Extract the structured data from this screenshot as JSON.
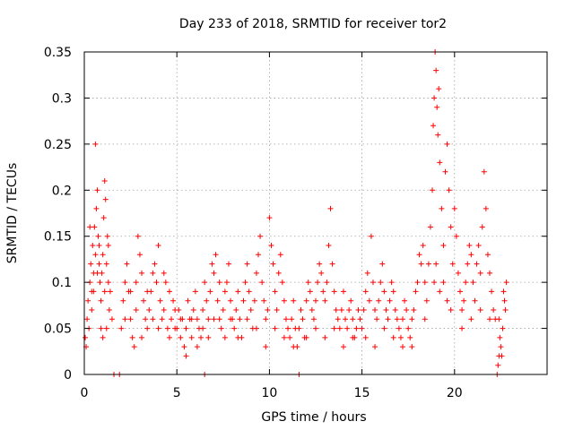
{
  "chart_data": {
    "type": "scatter",
    "title": "Day 233 of 2018, SRMTID for receiver tor2",
    "xlabel": "GPS time / hours",
    "ylabel": "SRMTID / TECUs",
    "xlim": [
      0,
      25
    ],
    "ylim": [
      0,
      0.35
    ],
    "x_ticks": [
      0,
      5,
      10,
      15,
      20
    ],
    "x_tick_labels": [
      "0",
      "5",
      "10",
      "15",
      "20"
    ],
    "y_ticks": [
      0,
      0.05,
      0.1,
      0.15,
      0.2,
      0.25,
      0.3,
      0.35
    ],
    "y_tick_labels": [
      "0",
      "0.05",
      "0.1",
      "0.15",
      "0.2",
      "0.25",
      "0.3",
      "0.35"
    ],
    "grid": true,
    "marker": "plus",
    "series": [
      {
        "name": "SRMTID",
        "color": "#ff0000",
        "points": [
          [
            0.05,
            0.04
          ],
          [
            0.1,
            0.03
          ],
          [
            0.15,
            0.06
          ],
          [
            0.2,
            0.08
          ],
          [
            0.25,
            0.05
          ],
          [
            0.3,
            0.1
          ],
          [
            0.35,
            0.12
          ],
          [
            0.4,
            0.09
          ],
          [
            0.45,
            0.14
          ],
          [
            0.5,
            0.11
          ],
          [
            0.55,
            0.16
          ],
          [
            0.6,
            0.13
          ],
          [
            0.65,
            0.18
          ],
          [
            0.7,
            0.2
          ],
          [
            0.75,
            0.15
          ],
          [
            0.8,
            0.12
          ],
          [
            0.85,
            0.1
          ],
          [
            0.9,
            0.08
          ],
          [
            0.95,
            0.11
          ],
          [
            1.0,
            0.13
          ],
          [
            1.05,
            0.17
          ],
          [
            1.1,
            0.21
          ],
          [
            1.15,
            0.19
          ],
          [
            1.2,
            0.12
          ],
          [
            1.25,
            0.15
          ],
          [
            1.3,
            0.1
          ],
          [
            1.35,
            0.07
          ],
          [
            1.4,
            0.09
          ],
          [
            0.3,
            0.16
          ],
          [
            0.4,
            0.07
          ],
          [
            0.5,
            0.09
          ],
          [
            0.6,
            0.25
          ],
          [
            0.7,
            0.11
          ],
          [
            0.8,
            0.14
          ],
          [
            0.9,
            0.05
          ],
          [
            1.0,
            0.04
          ],
          [
            1.1,
            0.09
          ],
          [
            1.2,
            0.05
          ],
          [
            1.3,
            0.14
          ],
          [
            1.5,
            0.06
          ],
          [
            1.6,
            0.0
          ],
          [
            1.9,
            0.0
          ],
          [
            2.0,
            0.05
          ],
          [
            2.1,
            0.08
          ],
          [
            2.2,
            0.1
          ],
          [
            2.3,
            0.12
          ],
          [
            2.4,
            0.09
          ],
          [
            2.5,
            0.06
          ],
          [
            2.6,
            0.04
          ],
          [
            2.7,
            0.03
          ],
          [
            2.8,
            0.07
          ],
          [
            2.9,
            0.15
          ],
          [
            3.0,
            0.13
          ],
          [
            3.1,
            0.11
          ],
          [
            3.2,
            0.08
          ],
          [
            3.3,
            0.06
          ],
          [
            3.4,
            0.05
          ],
          [
            3.5,
            0.07
          ],
          [
            3.6,
            0.09
          ],
          [
            3.7,
            0.11
          ],
          [
            3.8,
            0.12
          ],
          [
            3.9,
            0.1
          ],
          [
            4.0,
            0.14
          ],
          [
            4.1,
            0.08
          ],
          [
            4.2,
            0.06
          ],
          [
            4.3,
            0.07
          ],
          [
            4.4,
            0.1
          ],
          [
            4.5,
            0.05
          ],
          [
            4.6,
            0.04
          ],
          [
            4.7,
            0.06
          ],
          [
            4.8,
            0.08
          ],
          [
            4.9,
            0.05
          ],
          [
            2.2,
            0.06
          ],
          [
            2.5,
            0.09
          ],
          [
            2.8,
            0.1
          ],
          [
            3.1,
            0.04
          ],
          [
            3.4,
            0.09
          ],
          [
            3.7,
            0.06
          ],
          [
            4.0,
            0.05
          ],
          [
            4.3,
            0.11
          ],
          [
            4.6,
            0.09
          ],
          [
            4.9,
            0.07
          ],
          [
            5.0,
            0.05
          ],
          [
            5.1,
            0.07
          ],
          [
            5.2,
            0.04
          ],
          [
            5.3,
            0.06
          ],
          [
            5.4,
            0.03
          ],
          [
            5.5,
            0.05
          ],
          [
            5.6,
            0.08
          ],
          [
            5.7,
            0.06
          ],
          [
            5.8,
            0.04
          ],
          [
            5.9,
            0.07
          ],
          [
            6.0,
            0.09
          ],
          [
            6.1,
            0.06
          ],
          [
            6.2,
            0.05
          ],
          [
            6.3,
            0.04
          ],
          [
            6.4,
            0.07
          ],
          [
            6.5,
            0.1
          ],
          [
            6.6,
            0.08
          ],
          [
            6.7,
            0.06
          ],
          [
            6.8,
            0.09
          ],
          [
            6.9,
            0.12
          ],
          [
            7.0,
            0.11
          ],
          [
            7.1,
            0.13
          ],
          [
            7.2,
            0.08
          ],
          [
            7.3,
            0.06
          ],
          [
            7.4,
            0.05
          ],
          [
            7.5,
            0.07
          ],
          [
            7.6,
            0.09
          ],
          [
            7.7,
            0.1
          ],
          [
            7.8,
            0.12
          ],
          [
            7.9,
            0.08
          ],
          [
            5.2,
            0.06
          ],
          [
            5.5,
            0.02
          ],
          [
            5.8,
            0.06
          ],
          [
            6.1,
            0.03
          ],
          [
            6.4,
            0.05
          ],
          [
            6.7,
            0.04
          ],
          [
            7.0,
            0.06
          ],
          [
            7.3,
            0.1
          ],
          [
            7.6,
            0.04
          ],
          [
            7.9,
            0.06
          ],
          [
            6.5,
            0.0
          ],
          [
            8.0,
            0.06
          ],
          [
            8.1,
            0.05
          ],
          [
            8.2,
            0.07
          ],
          [
            8.3,
            0.09
          ],
          [
            8.4,
            0.06
          ],
          [
            8.5,
            0.04
          ],
          [
            8.6,
            0.08
          ],
          [
            8.7,
            0.1
          ],
          [
            8.8,
            0.12
          ],
          [
            8.9,
            0.09
          ],
          [
            9.0,
            0.07
          ],
          [
            9.1,
            0.05
          ],
          [
            9.2,
            0.08
          ],
          [
            9.3,
            0.11
          ],
          [
            9.4,
            0.13
          ],
          [
            9.5,
            0.15
          ],
          [
            9.6,
            0.1
          ],
          [
            9.7,
            0.08
          ],
          [
            9.8,
            0.06
          ],
          [
            9.9,
            0.07
          ],
          [
            10.0,
            0.17
          ],
          [
            10.1,
            0.14
          ],
          [
            10.2,
            0.12
          ],
          [
            10.3,
            0.09
          ],
          [
            10.4,
            0.07
          ],
          [
            10.5,
            0.11
          ],
          [
            10.6,
            0.13
          ],
          [
            10.7,
            0.1
          ],
          [
            10.8,
            0.08
          ],
          [
            10.9,
            0.06
          ],
          [
            11.0,
            0.05
          ],
          [
            11.1,
            0.04
          ],
          [
            11.2,
            0.06
          ],
          [
            11.3,
            0.08
          ],
          [
            11.4,
            0.05
          ],
          [
            8.3,
            0.04
          ],
          [
            8.8,
            0.06
          ],
          [
            9.3,
            0.05
          ],
          [
            9.8,
            0.03
          ],
          [
            10.3,
            0.05
          ],
          [
            10.8,
            0.04
          ],
          [
            11.3,
            0.03
          ],
          [
            11.6,
            0.0
          ],
          [
            11.5,
            0.03
          ],
          [
            11.6,
            0.05
          ],
          [
            11.7,
            0.07
          ],
          [
            11.8,
            0.06
          ],
          [
            11.9,
            0.04
          ],
          [
            12.0,
            0.08
          ],
          [
            12.1,
            0.1
          ],
          [
            12.2,
            0.09
          ],
          [
            12.3,
            0.07
          ],
          [
            12.4,
            0.06
          ],
          [
            12.5,
            0.08
          ],
          [
            12.6,
            0.1
          ],
          [
            12.7,
            0.12
          ],
          [
            12.8,
            0.11
          ],
          [
            12.9,
            0.09
          ],
          [
            13.0,
            0.08
          ],
          [
            13.1,
            0.1
          ],
          [
            13.2,
            0.14
          ],
          [
            13.3,
            0.18
          ],
          [
            13.4,
            0.12
          ],
          [
            13.5,
            0.09
          ],
          [
            13.6,
            0.07
          ],
          [
            13.7,
            0.06
          ],
          [
            13.8,
            0.05
          ],
          [
            13.9,
            0.07
          ],
          [
            14.0,
            0.09
          ],
          [
            14.1,
            0.06
          ],
          [
            14.2,
            0.05
          ],
          [
            14.3,
            0.07
          ],
          [
            14.4,
            0.08
          ],
          [
            14.5,
            0.06
          ],
          [
            14.6,
            0.04
          ],
          [
            14.7,
            0.05
          ],
          [
            14.8,
            0.07
          ],
          [
            14.9,
            0.06
          ],
          [
            12.0,
            0.04
          ],
          [
            12.5,
            0.05
          ],
          [
            13.0,
            0.04
          ],
          [
            13.5,
            0.05
          ],
          [
            14.0,
            0.03
          ],
          [
            14.5,
            0.04
          ],
          [
            15.0,
            0.05
          ],
          [
            15.1,
            0.07
          ],
          [
            15.2,
            0.09
          ],
          [
            15.3,
            0.11
          ],
          [
            15.4,
            0.08
          ],
          [
            15.5,
            0.15
          ],
          [
            15.6,
            0.1
          ],
          [
            15.7,
            0.07
          ],
          [
            15.8,
            0.06
          ],
          [
            15.9,
            0.08
          ],
          [
            16.0,
            0.1
          ],
          [
            16.1,
            0.12
          ],
          [
            16.2,
            0.09
          ],
          [
            16.3,
            0.07
          ],
          [
            16.4,
            0.06
          ],
          [
            16.5,
            0.08
          ],
          [
            16.6,
            0.1
          ],
          [
            16.7,
            0.09
          ],
          [
            16.8,
            0.07
          ],
          [
            16.9,
            0.06
          ],
          [
            17.0,
            0.05
          ],
          [
            17.1,
            0.04
          ],
          [
            17.2,
            0.06
          ],
          [
            17.3,
            0.08
          ],
          [
            17.4,
            0.07
          ],
          [
            17.5,
            0.05
          ],
          [
            17.6,
            0.04
          ],
          [
            17.7,
            0.06
          ],
          [
            17.8,
            0.07
          ],
          [
            17.9,
            0.09
          ],
          [
            15.2,
            0.04
          ],
          [
            15.7,
            0.03
          ],
          [
            16.2,
            0.05
          ],
          [
            16.7,
            0.04
          ],
          [
            17.2,
            0.03
          ],
          [
            17.7,
            0.03
          ],
          [
            18.0,
            0.1
          ],
          [
            18.1,
            0.13
          ],
          [
            18.2,
            0.12
          ],
          [
            18.3,
            0.14
          ],
          [
            18.4,
            0.1
          ],
          [
            18.5,
            0.08
          ],
          [
            18.6,
            0.12
          ],
          [
            18.7,
            0.16
          ],
          [
            18.8,
            0.2
          ],
          [
            18.85,
            0.27
          ],
          [
            18.9,
            0.3
          ],
          [
            18.95,
            0.35
          ],
          [
            19.0,
            0.33
          ],
          [
            19.05,
            0.29
          ],
          [
            19.1,
            0.26
          ],
          [
            19.15,
            0.31
          ],
          [
            19.2,
            0.23
          ],
          [
            19.3,
            0.18
          ],
          [
            19.4,
            0.14
          ],
          [
            19.5,
            0.22
          ],
          [
            19.6,
            0.25
          ],
          [
            19.7,
            0.2
          ],
          [
            19.8,
            0.16
          ],
          [
            19.9,
            0.12
          ],
          [
            20.0,
            0.18
          ],
          [
            20.1,
            0.15
          ],
          [
            19.0,
            0.12
          ],
          [
            19.2,
            0.09
          ],
          [
            19.4,
            0.1
          ],
          [
            19.6,
            0.08
          ],
          [
            19.8,
            0.07
          ],
          [
            18.4,
            0.06
          ],
          [
            18.9,
            0.1
          ],
          [
            20.2,
            0.11
          ],
          [
            20.3,
            0.09
          ],
          [
            20.4,
            0.07
          ],
          [
            20.5,
            0.08
          ],
          [
            20.6,
            0.1
          ],
          [
            20.7,
            0.12
          ],
          [
            20.8,
            0.14
          ],
          [
            20.9,
            0.13
          ],
          [
            21.0,
            0.1
          ],
          [
            21.1,
            0.08
          ],
          [
            21.2,
            0.12
          ],
          [
            21.3,
            0.14
          ],
          [
            21.4,
            0.11
          ],
          [
            21.5,
            0.16
          ],
          [
            21.6,
            0.22
          ],
          [
            21.7,
            0.18
          ],
          [
            21.8,
            0.13
          ],
          [
            21.9,
            0.11
          ],
          [
            22.0,
            0.09
          ],
          [
            22.1,
            0.07
          ],
          [
            22.2,
            0.06
          ],
          [
            20.4,
            0.05
          ],
          [
            20.9,
            0.06
          ],
          [
            21.4,
            0.07
          ],
          [
            21.9,
            0.06
          ],
          [
            22.3,
            0.0
          ],
          [
            22.35,
            0.01
          ],
          [
            22.4,
            0.02
          ],
          [
            22.45,
            0.04
          ],
          [
            22.5,
            0.03
          ],
          [
            22.55,
            0.02
          ],
          [
            22.6,
            0.05
          ],
          [
            22.65,
            0.09
          ],
          [
            22.7,
            0.08
          ],
          [
            22.75,
            0.07
          ],
          [
            22.8,
            0.1
          ],
          [
            22.4,
            0.06
          ]
        ]
      }
    ]
  }
}
